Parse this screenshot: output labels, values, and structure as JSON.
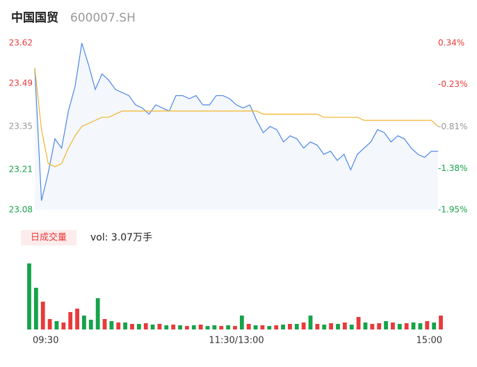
{
  "chart_data": [
    {
      "type": "line",
      "title": "中国国贸",
      "subtitle": "600007.SH",
      "categories": [
        "09:30",
        null,
        null,
        null,
        null,
        null,
        null,
        null,
        null,
        null,
        null,
        null,
        null,
        null,
        null,
        null,
        null,
        null,
        null,
        null,
        null,
        null,
        null,
        null,
        null,
        null,
        null,
        null,
        null,
        null,
        "11:30/13:00",
        null,
        null,
        null,
        null,
        null,
        null,
        null,
        null,
        null,
        null,
        null,
        null,
        null,
        null,
        null,
        null,
        null,
        null,
        null,
        null,
        null,
        null,
        null,
        null,
        null,
        null,
        null,
        null,
        null,
        "15:00"
      ],
      "series": [
        {
          "name": "price",
          "color": "#4a86e8",
          "values": [
            23.54,
            23.11,
            23.2,
            23.31,
            23.28,
            23.4,
            23.48,
            23.62,
            23.55,
            23.47,
            23.52,
            23.5,
            23.47,
            23.46,
            23.45,
            23.42,
            23.41,
            23.39,
            23.42,
            23.41,
            23.4,
            23.45,
            23.45,
            23.44,
            23.45,
            23.42,
            23.42,
            23.45,
            23.45,
            23.44,
            23.42,
            23.41,
            23.42,
            23.37,
            23.33,
            23.35,
            23.34,
            23.3,
            23.32,
            23.31,
            23.28,
            23.3,
            23.29,
            23.26,
            23.27,
            23.24,
            23.26,
            23.21,
            23.26,
            23.28,
            23.3,
            23.34,
            23.33,
            23.3,
            23.32,
            23.31,
            23.28,
            23.26,
            23.25,
            23.27,
            23.27
          ]
        },
        {
          "name": "average",
          "color": "#f0b429",
          "values": [
            23.54,
            23.34,
            23.23,
            23.22,
            23.23,
            23.28,
            23.32,
            23.35,
            23.36,
            23.37,
            23.38,
            23.38,
            23.39,
            23.4,
            23.4,
            23.4,
            23.4,
            23.4,
            23.4,
            23.4,
            23.4,
            23.4,
            23.4,
            23.4,
            23.4,
            23.4,
            23.4,
            23.4,
            23.4,
            23.4,
            23.4,
            23.4,
            23.4,
            23.4,
            23.39,
            23.39,
            23.39,
            23.39,
            23.39,
            23.39,
            23.39,
            23.39,
            23.39,
            23.38,
            23.38,
            23.38,
            23.38,
            23.38,
            23.38,
            23.37,
            23.37,
            23.37,
            23.37,
            23.37,
            23.37,
            23.37,
            23.37,
            23.37,
            23.37,
            23.37,
            23.35
          ]
        }
      ],
      "ylim": [
        23.08,
        23.62
      ],
      "yticks": [
        23.08,
        23.21,
        23.35,
        23.49,
        23.62
      ],
      "y2lim": [
        -1.95,
        0.34
      ],
      "y2ticks": [
        {
          "value": -1.95,
          "label": "-1.95%"
        },
        {
          "value": -1.38,
          "label": "-1.38%"
        },
        {
          "value": -0.81,
          "label": "-0.81%"
        },
        {
          "value": -0.23,
          "label": "-0.23%"
        },
        {
          "value": 0.34,
          "label": "0.34%"
        }
      ],
      "tick_colors": [
        "#16a34a",
        "#16a34a",
        "#999999",
        "#e83a3a",
        "#e83a3a"
      ]
    },
    {
      "type": "bar",
      "title": "日成交量",
      "subtitle": "vol: 3.07万手",
      "values": [
        95,
        60,
        40,
        15,
        12,
        10,
        25,
        30,
        20,
        14,
        45,
        15,
        12,
        10,
        10,
        8,
        8,
        9,
        7,
        8,
        6,
        7,
        6,
        5,
        6,
        7,
        5,
        6,
        5,
        6,
        5,
        20,
        8,
        6,
        6,
        5,
        6,
        7,
        8,
        8,
        10,
        20,
        8,
        7,
        9,
        8,
        10,
        7,
        18,
        10,
        8,
        9,
        12,
        10,
        8,
        9,
        10,
        9,
        12,
        10,
        20
      ],
      "colors": [
        "#16a34a",
        "#16a34a",
        "#e83a3a",
        "#e83a3a",
        "#16a34a",
        "#e83a3a",
        "#e83a3a",
        "#e83a3a",
        "#16a34a",
        "#16a34a",
        "#16a34a",
        "#e83a3a",
        "#16a34a",
        "#e83a3a",
        "#16a34a",
        "#e83a3a",
        "#16a34a",
        "#e83a3a",
        "#16a34a",
        "#e83a3a",
        "#16a34a",
        "#e83a3a",
        "#16a34a",
        "#e83a3a",
        "#16a34a",
        "#e83a3a",
        "#16a34a",
        "#16a34a",
        "#e83a3a",
        "#16a34a",
        "#e83a3a",
        "#16a34a",
        "#e83a3a",
        "#16a34a",
        "#e83a3a",
        "#16a34a",
        "#e83a3a",
        "#16a34a",
        "#e83a3a",
        "#16a34a",
        "#e83a3a",
        "#16a34a",
        "#e83a3a",
        "#16a34a",
        "#e83a3a",
        "#16a34a",
        "#e83a3a",
        "#16a34a",
        "#e83a3a",
        "#16a34a",
        "#e83a3a",
        "#e83a3a",
        "#16a34a",
        "#e83a3a",
        "#16a34a",
        "#e83a3a",
        "#16a34a",
        "#16a34a",
        "#e83a3a",
        "#16a34a",
        "#e83a3a"
      ],
      "ylim": [
        0,
        100
      ]
    }
  ]
}
